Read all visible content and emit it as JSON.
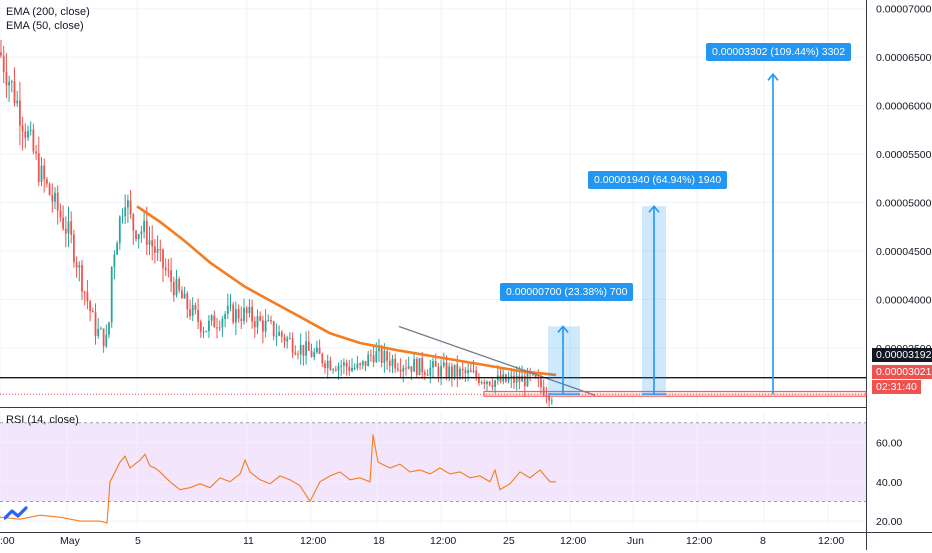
{
  "indicators": {
    "ema200_label": "EMA (200, close)",
    "ema50_label": "EMA (50, close)",
    "rsi_label": "RSI (14, close)"
  },
  "price_axis": {
    "ticks": [
      "0.00007000",
      "0.00006500",
      "0.00006000",
      "0.00005500",
      "0.00005000",
      "0.00004500",
      "0.00004000",
      "0.00003500"
    ],
    "current_price": "0.00003192",
    "last_price": "0.00003021",
    "countdown": "02:31:40"
  },
  "rsi_axis": {
    "ticks": [
      "60.00",
      "40.00",
      "20.00"
    ]
  },
  "time_axis": {
    "ticks": [
      ":00",
      "May",
      "5",
      "11",
      "12:00",
      "18",
      "12:00",
      "25",
      "12:00",
      "Jun",
      "12:00",
      "8",
      "12:00"
    ]
  },
  "measurements": [
    {
      "label": "0.00000700 (23.38%) 700",
      "from": 3.021e-05,
      "to": 3.721e-05
    },
    {
      "label": "0.00001940 (64.94%) 1940",
      "from": 3.021e-05,
      "to": 4.961e-05
    },
    {
      "label": "0.00003302 (109.44%) 3302",
      "from": 3.021e-05,
      "to": 6.323e-05
    }
  ],
  "colors": {
    "up": "#26a69a",
    "down": "#ef5350",
    "ema50": "#f57c20",
    "rsi": "#f57c20",
    "rsi_band": "#f3e5fb",
    "measure": "#2196f3",
    "price_line": "#131722",
    "last_price": "#ef5350"
  },
  "chart_data": {
    "type": "candlestick",
    "price_range": [
      2.92e-05,
      7.09e-05
    ],
    "rsi_range": [
      17,
      76
    ],
    "rsi_levels": [
      70,
      30
    ],
    "grid": true,
    "ema50": [
      [
        137,
        4.96e-05
      ],
      [
        160,
        4.8e-05
      ],
      [
        185,
        4.6e-05
      ],
      [
        210,
        4.38e-05
      ],
      [
        245,
        4.13e-05
      ],
      [
        275,
        3.96e-05
      ],
      [
        300,
        3.82e-05
      ],
      [
        330,
        3.65e-05
      ],
      [
        360,
        3.55e-05
      ],
      [
        400,
        3.47e-05
      ],
      [
        440,
        3.4e-05
      ],
      [
        480,
        3.33e-05
      ],
      [
        520,
        3.26e-05
      ],
      [
        556,
        3.22e-05
      ]
    ],
    "trendline": [
      [
        399,
        3.72e-05
      ],
      [
        595,
        3.01e-05
      ]
    ],
    "rsi": [
      [
        0,
        22
      ],
      [
        20,
        21
      ],
      [
        40,
        23
      ],
      [
        60,
        22
      ],
      [
        80,
        20
      ],
      [
        100,
        20
      ],
      [
        107,
        19
      ],
      [
        110,
        40
      ],
      [
        115,
        45
      ],
      [
        120,
        50
      ],
      [
        125,
        53
      ],
      [
        130,
        47
      ],
      [
        135,
        49
      ],
      [
        140,
        51
      ],
      [
        145,
        54
      ],
      [
        150,
        48
      ],
      [
        155,
        47
      ],
      [
        160,
        45
      ],
      [
        170,
        40
      ],
      [
        180,
        36
      ],
      [
        190,
        37
      ],
      [
        200,
        39
      ],
      [
        210,
        37
      ],
      [
        220,
        42
      ],
      [
        230,
        40
      ],
      [
        240,
        44
      ],
      [
        245,
        51
      ],
      [
        250,
        45
      ],
      [
        260,
        41
      ],
      [
        270,
        39
      ],
      [
        280,
        43
      ],
      [
        290,
        41
      ],
      [
        300,
        38
      ],
      [
        310,
        30
      ],
      [
        320,
        40
      ],
      [
        330,
        43
      ],
      [
        340,
        45
      ],
      [
        350,
        41
      ],
      [
        360,
        42
      ],
      [
        370,
        40
      ],
      [
        373,
        64
      ],
      [
        378,
        50
      ],
      [
        390,
        47
      ],
      [
        400,
        49
      ],
      [
        410,
        45
      ],
      [
        420,
        46
      ],
      [
        430,
        44
      ],
      [
        440,
        47
      ],
      [
        450,
        44
      ],
      [
        460,
        45
      ],
      [
        470,
        42
      ],
      [
        480,
        43
      ],
      [
        490,
        40
      ],
      [
        495,
        46
      ],
      [
        500,
        36
      ],
      [
        510,
        39
      ],
      [
        520,
        45
      ],
      [
        530,
        42
      ],
      [
        540,
        46
      ],
      [
        550,
        40
      ],
      [
        556,
        40
      ]
    ]
  }
}
